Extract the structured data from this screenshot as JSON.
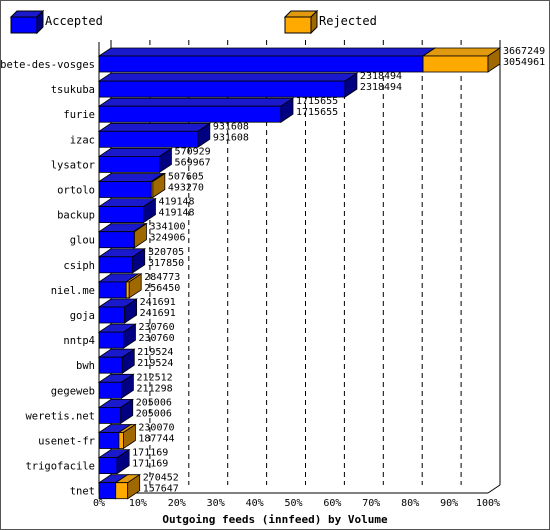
{
  "chart_data": {
    "type": "bar",
    "stacked": true,
    "orientation": "horizontal",
    "xlabel": "Outgoing feeds (innfeed) by Volume",
    "xlim": [
      0,
      100
    ],
    "xunit": "%",
    "x_ticks": [
      "0%",
      "10%",
      "20%",
      "30%",
      "40%",
      "50%",
      "60%",
      "70%",
      "80%",
      "90%",
      "100%"
    ],
    "grid": true,
    "legend_placement": "top",
    "colors": {
      "accepted_front": "#0000ff",
      "accepted_top": "#1a1acc",
      "accepted_side": "#000080",
      "rejected_front": "#ffaa00",
      "rejected_top": "#e09a10",
      "rejected_side": "#a06800"
    },
    "series": [
      {
        "name": "Accepted",
        "color": "#0000ff"
      },
      {
        "name": "Rejected",
        "color": "#ffaa00"
      }
    ],
    "categories": [
      {
        "label": "bete-des-vosges",
        "offered": 3667249,
        "accepted": 3054961
      },
      {
        "label": "tsukuba",
        "offered": 2318494,
        "accepted": 2318494
      },
      {
        "label": "furie",
        "offered": 1715655,
        "accepted": 1715655
      },
      {
        "label": "izac",
        "offered": 931608,
        "accepted": 931608
      },
      {
        "label": "lysator",
        "offered": 570929,
        "accepted": 569967
      },
      {
        "label": "ortolo",
        "offered": 507605,
        "accepted": 493270
      },
      {
        "label": "backup",
        "offered": 419148,
        "accepted": 419148
      },
      {
        "label": "glou",
        "offered": 334100,
        "accepted": 324906
      },
      {
        "label": "csiph",
        "offered": 320705,
        "accepted": 317850
      },
      {
        "label": "niel.me",
        "offered": 284773,
        "accepted": 256450
      },
      {
        "label": "goja",
        "offered": 241691,
        "accepted": 241691
      },
      {
        "label": "nntp4",
        "offered": 230760,
        "accepted": 230760
      },
      {
        "label": "bwh",
        "offered": 219524,
        "accepted": 219524
      },
      {
        "label": "gegeweb",
        "offered": 212512,
        "accepted": 211298
      },
      {
        "label": "weretis.net",
        "offered": 205006,
        "accepted": 205006
      },
      {
        "label": "usenet-fr",
        "offered": 230070,
        "accepted": 187744
      },
      {
        "label": "trigofacile",
        "offered": 171169,
        "accepted": 171169
      },
      {
        "label": "tnet",
        "offered": 270452,
        "accepted": 157647
      }
    ]
  }
}
